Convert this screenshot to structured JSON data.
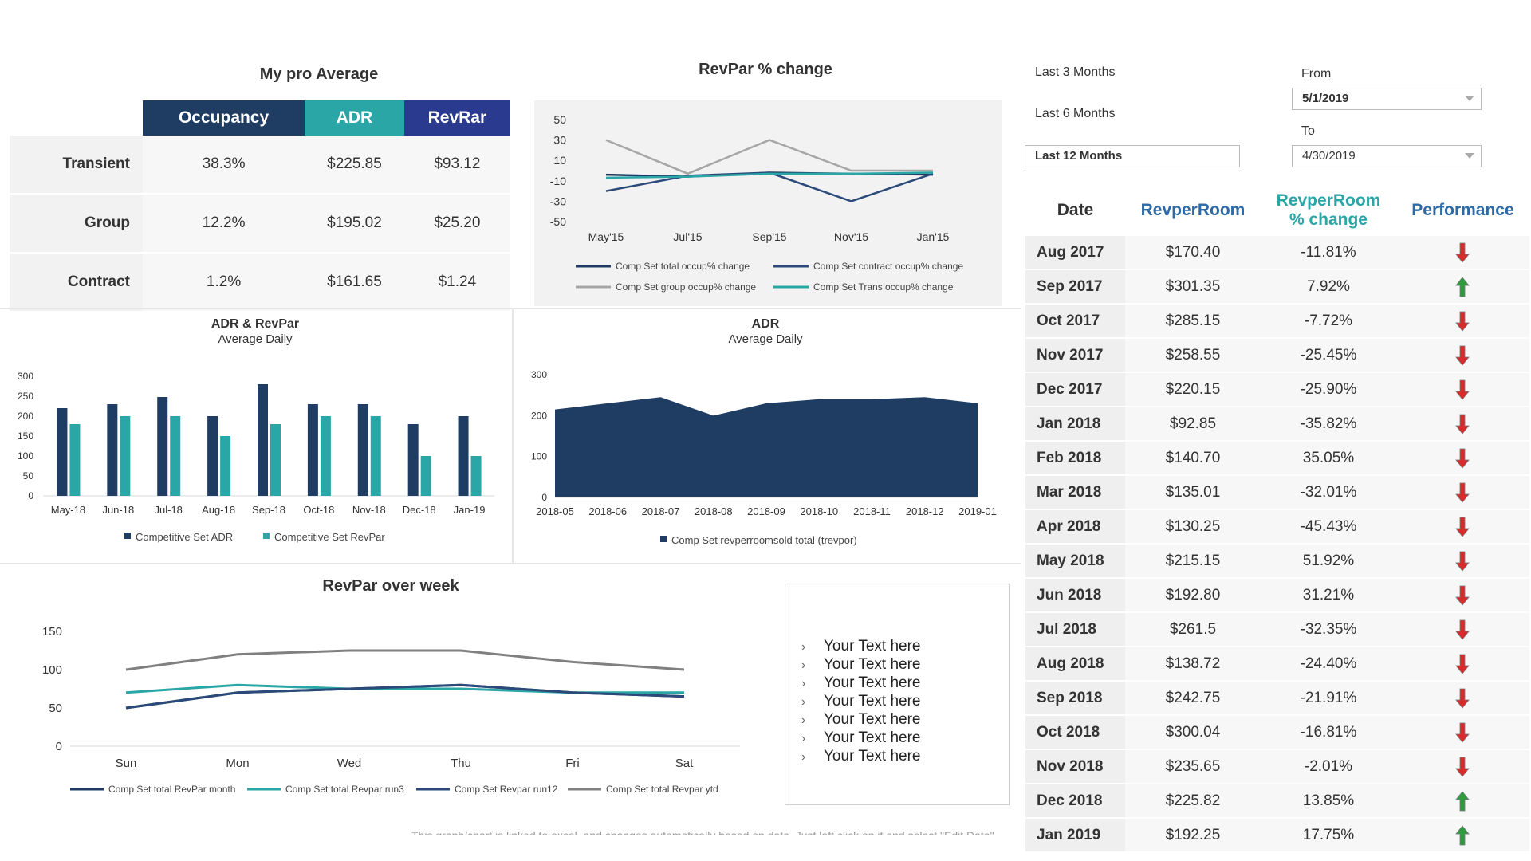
{
  "avg": {
    "title": "My pro Average",
    "headers": [
      "Occupancy",
      "ADR",
      "RevRar"
    ],
    "rows": [
      {
        "label": "Transient",
        "occupancy": "38.3%",
        "adr": "$225.85",
        "revrar": "$93.12"
      },
      {
        "label": "Group",
        "occupancy": "12.2%",
        "adr": "$195.02",
        "revrar": "$25.20"
      },
      {
        "label": "Contract",
        "occupancy": "1.2%",
        "adr": "$161.65",
        "revrar": "$1.24"
      }
    ]
  },
  "filters": {
    "last3": "Last 3 Months",
    "last6": "Last 6 Months",
    "last12": "Last 12 Months",
    "from_label": "From",
    "from_value": "5/1/2019",
    "to_label": "To",
    "to_value": "4/30/2019"
  },
  "perf": {
    "headers": {
      "date": "Date",
      "rev": "RevperRoom",
      "pct1": "RevperRoom",
      "pct2": "% change",
      "perf": "Performance"
    },
    "rows": [
      {
        "date": "Aug 2017",
        "rev": "$170.40",
        "pct": "-11.81%",
        "trend": "down"
      },
      {
        "date": "Sep 2017",
        "rev": "$301.35",
        "pct": "7.92%",
        "trend": "up"
      },
      {
        "date": "Oct 2017",
        "rev": "$285.15",
        "pct": "-7.72%",
        "trend": "down"
      },
      {
        "date": "Nov 2017",
        "rev": "$258.55",
        "pct": "-25.45%",
        "trend": "down"
      },
      {
        "date": "Dec 2017",
        "rev": "$220.15",
        "pct": "-25.90%",
        "trend": "down"
      },
      {
        "date": "Jan 2018",
        "rev": "$92.85",
        "pct": "-35.82%",
        "trend": "down"
      },
      {
        "date": "Feb 2018",
        "rev": "$140.70",
        "pct": "35.05%",
        "trend": "down"
      },
      {
        "date": "Mar 2018",
        "rev": "$135.01",
        "pct": "-32.01%",
        "trend": "down"
      },
      {
        "date": "Apr 2018",
        "rev": "$130.25",
        "pct": "-45.43%",
        "trend": "down"
      },
      {
        "date": "May 2018",
        "rev": "$215.15",
        "pct": "51.92%",
        "trend": "down"
      },
      {
        "date": "Jun 2018",
        "rev": "$192.80",
        "pct": "31.21%",
        "trend": "down"
      },
      {
        "date": "Jul 2018",
        "rev": "$261.5",
        "pct": "-32.35%",
        "trend": "down"
      },
      {
        "date": "Aug 2018",
        "rev": "$138.72",
        "pct": "-24.40%",
        "trend": "down"
      },
      {
        "date": "Sep 2018",
        "rev": "$242.75",
        "pct": "-21.91%",
        "trend": "down"
      },
      {
        "date": "Oct 2018",
        "rev": "$300.04",
        "pct": "-16.81%",
        "trend": "down"
      },
      {
        "date": "Nov 2018",
        "rev": "$235.65",
        "pct": "-2.01%",
        "trend": "down"
      },
      {
        "date": "Dec 2018",
        "rev": "$225.82",
        "pct": "13.85%",
        "trend": "up"
      },
      {
        "date": "Jan 2019",
        "rev": "$192.25",
        "pct": "17.75%",
        "trend": "up"
      }
    ]
  },
  "text_list": {
    "items": [
      "Your Text here",
      "Your Text here",
      "Your Text here",
      "Your Text here",
      "Your Text here",
      "Your Text here",
      "Your Text here"
    ]
  },
  "footer_note": "This graph/chart is linked to excel, and changes automatically based on data. Just left click on it and select \"Edit Data\".",
  "colors": {
    "navy": "#1f3c63",
    "teal": "#2aa6a6",
    "blue": "#2a3b8f",
    "gray": "#a6a6a6",
    "up": "#2e9b3e",
    "down": "#d92b2b"
  },
  "chart_data": [
    {
      "id": "revpar_change",
      "type": "line",
      "title": "RevPar % change",
      "categories": [
        "May'15",
        "Jul'15",
        "Sep'15",
        "Nov'15",
        "Jan'15"
      ],
      "yticks": [
        50,
        30,
        10,
        -10,
        -30,
        -50
      ],
      "ylim": [
        -50,
        50
      ],
      "series": [
        {
          "name": "Comp Set total occup% change",
          "color": "#1f3c63",
          "values": [
            -4,
            -6,
            -2,
            -3,
            -4
          ]
        },
        {
          "name": "Comp Set contract occup% change",
          "color": "#2b4a7a",
          "values": [
            -20,
            -5,
            -2,
            -30,
            -3
          ]
        },
        {
          "name": "Comp Set group occup% change",
          "color": "#a6a6a6",
          "values": [
            30,
            -3,
            30,
            0,
            0
          ]
        },
        {
          "name": "Comp Set Trans occup% change",
          "color": "#2aa6a6",
          "values": [
            -7,
            -6,
            -3,
            -3,
            -2
          ]
        }
      ]
    },
    {
      "id": "adr_revpar",
      "type": "bar",
      "title": "ADR & RevPar",
      "subtitle": "Average Daily",
      "categories": [
        "May-18",
        "Jun-18",
        "Jul-18",
        "Aug-18",
        "Sep-18",
        "Oct-18",
        "Nov-18",
        "Dec-18",
        "Jan-19"
      ],
      "yticks": [
        300,
        250,
        200,
        150,
        100,
        50,
        0
      ],
      "ylim": [
        0,
        300
      ],
      "series": [
        {
          "name": "Competitive Set ADR",
          "color": "#1f3c63",
          "values": [
            220,
            230,
            248,
            200,
            280,
            230,
            230,
            180,
            200
          ]
        },
        {
          "name": "Competitive Set RevPar",
          "color": "#2aa6a6",
          "values": [
            180,
            200,
            200,
            150,
            180,
            200,
            200,
            100,
            100
          ]
        }
      ]
    },
    {
      "id": "adr_area",
      "type": "area",
      "title": "ADR",
      "subtitle": "Average Daily",
      "categories": [
        "2018-05",
        "2018-06",
        "2018-07",
        "2018-08",
        "2018-09",
        "2018-10",
        "2018-11",
        "2018-12",
        "2019-01"
      ],
      "yticks": [
        300,
        200,
        100,
        0
      ],
      "ylim": [
        0,
        300
      ],
      "series": [
        {
          "name": "Comp Set revperroomsold total (trevpor)",
          "color": "#1f3c63",
          "values": [
            215,
            230,
            245,
            200,
            230,
            240,
            240,
            245,
            230
          ]
        }
      ]
    },
    {
      "id": "revpar_week",
      "type": "line",
      "title": "RevPar over week",
      "categories": [
        "Sun",
        "Mon",
        "Wed",
        "Thu",
        "Fri",
        "Sat"
      ],
      "yticks": [
        150,
        100,
        50,
        0
      ],
      "ylim": [
        0,
        150
      ],
      "series": [
        {
          "name": "Comp Set total RevPar month",
          "color": "#1f3c63",
          "values": [
            50,
            70,
            75,
            80,
            70,
            65
          ]
        },
        {
          "name": "Comp Set total Revpar run3",
          "color": "#2aa6a6",
          "values": [
            70,
            80,
            75,
            75,
            70,
            70
          ]
        },
        {
          "name": "Comp Set Revpar run12",
          "color": "#2b4a7a",
          "values": [
            50,
            70,
            75,
            80,
            70,
            65
          ]
        },
        {
          "name": "Comp Set total Revpar ytd",
          "color": "#808080",
          "values": [
            100,
            120,
            125,
            125,
            110,
            100
          ]
        }
      ]
    }
  ]
}
